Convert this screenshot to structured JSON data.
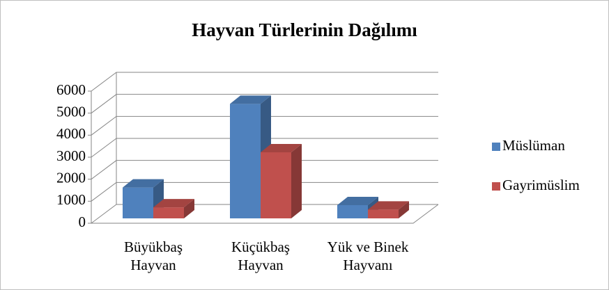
{
  "chart_data": {
    "type": "bar3d",
    "title": "Hayvan Türlerinin Dağılımı",
    "categories": [
      "Büyükbaş Hayvan",
      "Küçükbaş Hayvan",
      "Yük ve Binek Hayvanı"
    ],
    "series": [
      {
        "name": "Müslüman",
        "color": "#4f81bd",
        "values": [
          1400,
          5200,
          600
        ]
      },
      {
        "name": "Gayrimüslim",
        "color": "#c0504d",
        "values": [
          500,
          3000,
          400
        ]
      }
    ],
    "ylim": [
      0,
      6000
    ],
    "yticks": [
      0,
      1000,
      2000,
      3000,
      4000,
      5000,
      6000
    ],
    "grid": true,
    "legend": "right"
  }
}
